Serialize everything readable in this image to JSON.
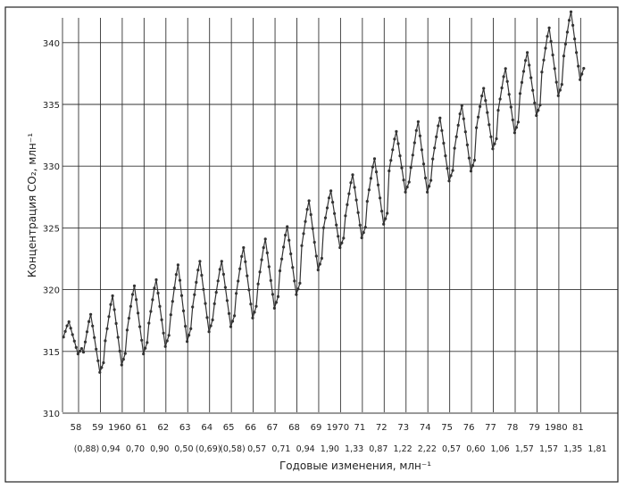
{
  "chart_data": {
    "type": "line",
    "ylabel": "Концентрация CO₂, млн⁻¹",
    "xlabel2": "Годовые изменения, млн⁻¹",
    "ylim": [
      310,
      340
    ],
    "yticks": [
      "310",
      "315",
      "320",
      "325",
      "330",
      "335",
      "340"
    ],
    "xticks": [
      "58",
      "59",
      "1960",
      "61",
      "62",
      "63",
      "64",
      "65",
      "66",
      "67",
      "68",
      "69",
      "1970",
      "71",
      "72",
      "73",
      "74",
      "75",
      "76",
      "77",
      "78",
      "79",
      "1980",
      "81"
    ],
    "annual_changes": [
      "(0,88)",
      "0,94",
      "0,70",
      "0,90",
      "0,50",
      "(0,69)",
      "(0,58)",
      "0,57",
      "0,71",
      "0,94",
      "1,90",
      "1,33",
      "0,87",
      "1,22",
      "2,22",
      "0,57",
      "0,60",
      "1,06",
      "1,57",
      "1,57",
      "1,35",
      "1,81"
    ],
    "seasonal_max": [
      317.4,
      318.0,
      319.5,
      320.3,
      320.8,
      322.0,
      322.3,
      322.3,
      323.4,
      324.1,
      325.1,
      327.2,
      328.0,
      329.3,
      330.6,
      332.8,
      333.6,
      333.9,
      334.9,
      336.3,
      337.9,
      339.2,
      341.2,
      342.5
    ],
    "seasonal_min": [
      314.8,
      313.3,
      313.9,
      314.8,
      315.4,
      315.8,
      316.6,
      317.0,
      317.7,
      318.5,
      319.6,
      321.6,
      323.4,
      324.2,
      325.3,
      327.9,
      327.9,
      328.8,
      329.6,
      331.4,
      332.7,
      334.1,
      335.7,
      337.0
    ],
    "grid": true,
    "marker": "dot"
  }
}
